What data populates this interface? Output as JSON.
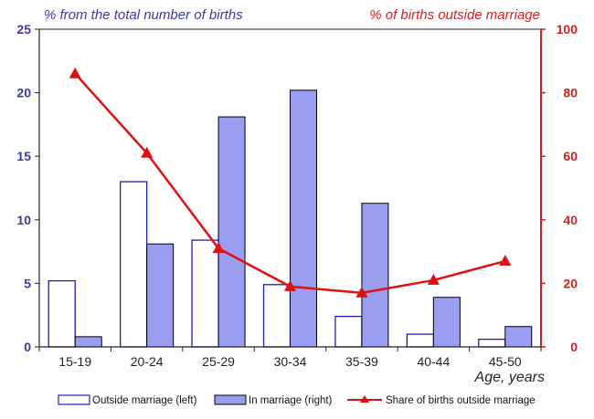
{
  "chart_data": {
    "type": "bar",
    "categories": [
      "15-19",
      "20-24",
      "25-29",
      "30-34",
      "35-39",
      "40-44",
      "45-50"
    ],
    "xlabel": "Age, years",
    "left_axis": {
      "title": "% from the total number of births",
      "ylim": [
        0,
        25
      ],
      "ticks": [
        0,
        5,
        10,
        15,
        20,
        25
      ],
      "color": "#3a3aa8"
    },
    "right_axis": {
      "title": "% of births outside marriage",
      "ylim": [
        0,
        100
      ],
      "ticks": [
        0,
        20,
        40,
        60,
        80,
        100
      ],
      "color": "#d42020"
    },
    "series": [
      {
        "name": "Outside marriage (left)",
        "type": "bar",
        "axis": "left",
        "values": [
          5.2,
          13.0,
          8.4,
          4.9,
          2.4,
          1.0,
          0.6
        ],
        "fill": "#ffffff",
        "stroke": "#2020b0"
      },
      {
        "name": "In marriage (right)",
        "type": "bar",
        "axis": "left",
        "values": [
          0.8,
          8.1,
          18.1,
          20.2,
          11.3,
          3.9,
          1.6
        ],
        "fill": "#9a9ef0",
        "stroke": "#000000"
      },
      {
        "name": "Share of births outside marriage",
        "type": "line",
        "axis": "right",
        "values": [
          86,
          61,
          31,
          19,
          17,
          21,
          27
        ],
        "color": "#e01010",
        "marker": "triangle"
      }
    ],
    "grid": false,
    "legend_position": "bottom"
  }
}
